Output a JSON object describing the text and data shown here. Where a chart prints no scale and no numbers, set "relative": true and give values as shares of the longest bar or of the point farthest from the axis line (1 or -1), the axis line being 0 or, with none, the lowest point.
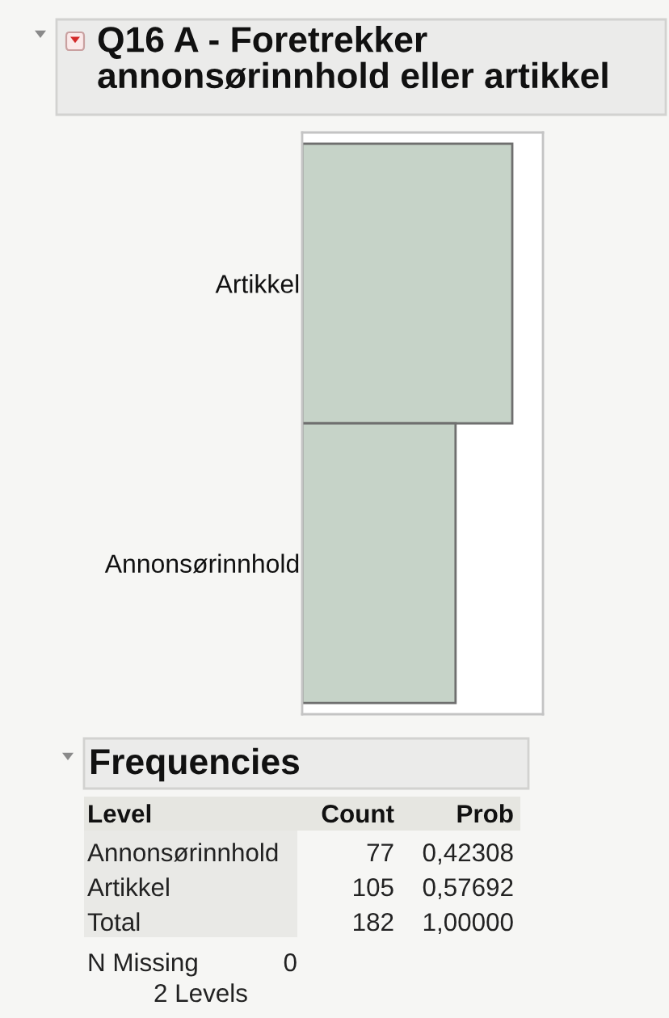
{
  "chart_data": {
    "type": "bar",
    "orientation": "horizontal",
    "title": "Q16 A - Foretrekker annonsørinnhold eller artikkel",
    "categories": [
      "Artikkel",
      "Annonsørinnhold"
    ],
    "values": [
      1,
      0.73
    ],
    "relative": true,
    "color": "#c6d3c8",
    "tick_labels": "y",
    "annotations": [
      "Frequencies",
      "Level",
      "Count",
      "Prob",
      "77",
      "0,42308",
      "105",
      "0,57692",
      "Total",
      "182",
      "1,00000",
      "N Missing",
      "0",
      "2 Levels"
    ]
  }
}
